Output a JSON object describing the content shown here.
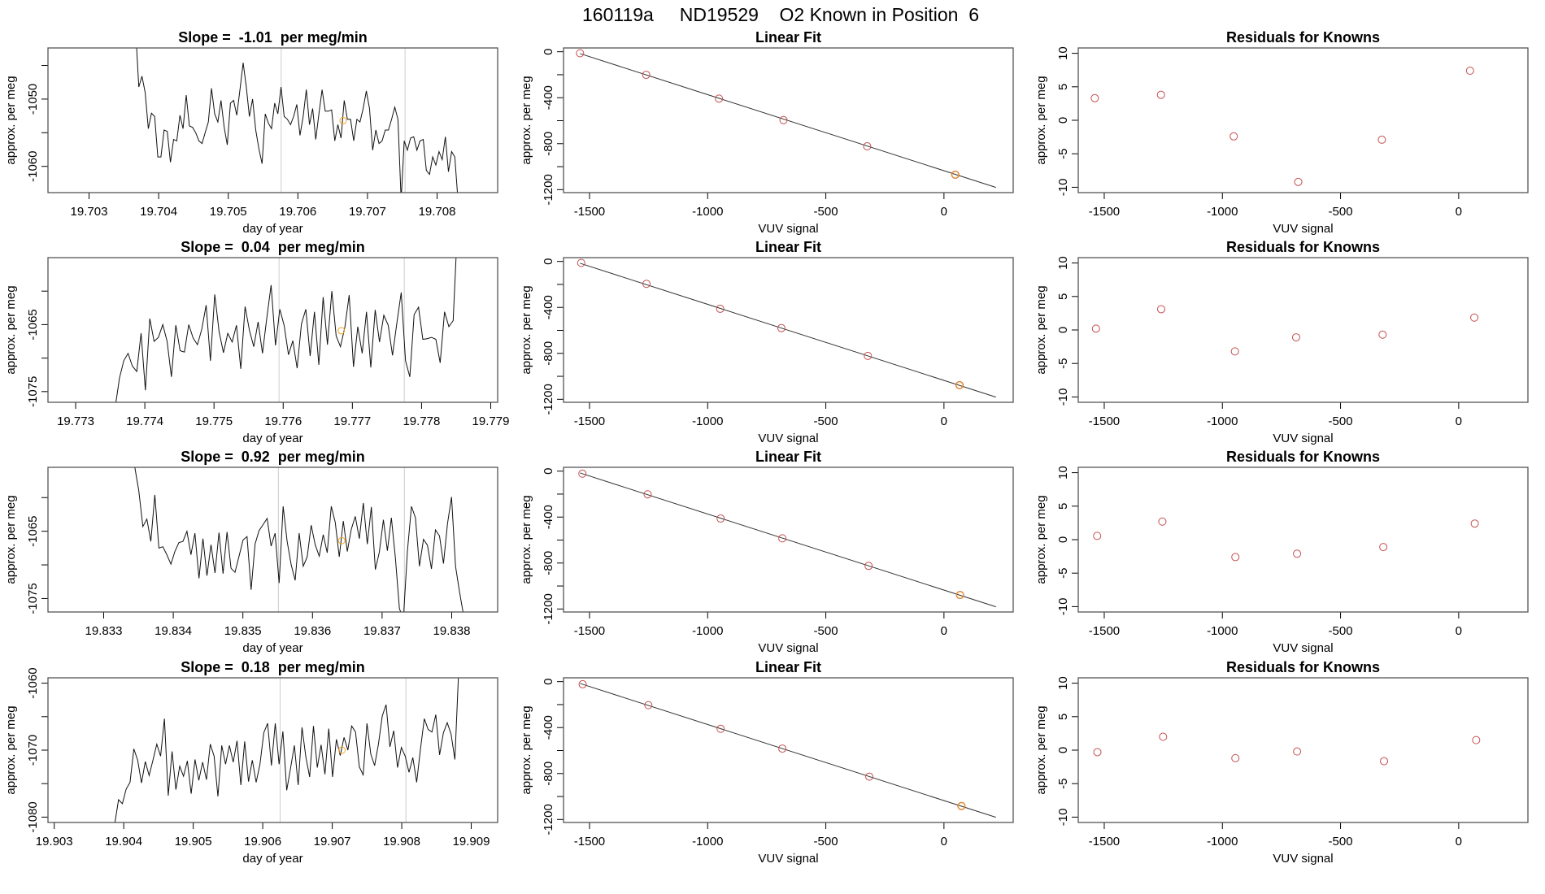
{
  "header": {
    "title": "160119a     ND19529    O2 Known in Position  6"
  },
  "colors": {
    "series": "#111111",
    "known_point": "#c44e4e",
    "current_point": "#f5a623",
    "guide_line": "#cccccc",
    "fit_line": "#333333"
  },
  "chart_data": [
    {
      "type": "line",
      "title": "Slope =  -1.01  per meg/min",
      "xlabel": "day of year",
      "ylabel": "approx. per meg",
      "xlim": [
        19.70241,
        19.70887
      ],
      "ylim": [
        -1063.9,
        -1042.4
      ],
      "xticks": [
        19.703,
        19.704,
        19.705,
        19.706,
        19.707,
        19.708
      ],
      "xtick_labels": [
        "19.703",
        "19.704",
        "19.705",
        "19.706",
        "19.707",
        "19.708"
      ],
      "yticks": [
        -1045,
        -1050,
        -1055,
        -1060
      ],
      "ytick_labels": [
        "",
        "-1050",
        "",
        "-1060"
      ],
      "vlines": [
        19.70576,
        19.70754
      ],
      "marker": [
        19.70665,
        -1053.2
      ],
      "x_range": [
        19.70367,
        19.7083
      ],
      "values": [
        -1040,
        -1048.2,
        -1046.6,
        -1049.0,
        -1054.4,
        -1052.1,
        -1052.6,
        -1058.6,
        -1058.6,
        -1054.6,
        -1054.8,
        -1059.4,
        -1056.0,
        -1056.2,
        -1052.4,
        -1054.4,
        -1049.4,
        -1054.0,
        -1054.2,
        -1055.0,
        -1056.2,
        -1056.6,
        -1055.0,
        -1053.4,
        -1048.4,
        -1052.2,
        -1053.4,
        -1050.2,
        -1054.2,
        -1056.8,
        -1050.6,
        -1050.2,
        -1052.4,
        -1048.6,
        -1044.6,
        -1048.2,
        -1052.6,
        -1050.0,
        -1054.6,
        -1057.4,
        -1059.6,
        -1052.2,
        -1053.6,
        -1054.4,
        -1050.6,
        -1052.2,
        -1048.2,
        -1052.6,
        -1053.0,
        -1053.8,
        -1052.6,
        -1050.8,
        -1055.4,
        -1052.6,
        -1048.6,
        -1053.8,
        -1051.4,
        -1056.0,
        -1052.2,
        -1048.6,
        -1051.8,
        -1051.8,
        -1051.6,
        -1056.2,
        -1053.8,
        -1055.8,
        -1050.2,
        -1053.0,
        -1053.0,
        -1056.2,
        -1053.0,
        -1053.4,
        -1051.4,
        -1048.8,
        -1051.4,
        -1057.6,
        -1054.6,
        -1056.6,
        -1056.2,
        -1054.6,
        -1054.6,
        -1053.0,
        -1051.2,
        -1053.0,
        -1065,
        -1056.2,
        -1057.6,
        -1055.8,
        -1055.6,
        -1057.6,
        -1056.2,
        -1056.0,
        -1060.6,
        -1061.2,
        -1058.6,
        -1059.8,
        -1057.8,
        -1059.0,
        -1055.6,
        -1060.8,
        -1057.8,
        -1058.6,
        -1065
      ]
    },
    {
      "type": "scatter",
      "title": "Linear Fit",
      "xlabel": "VUV signal",
      "ylabel": "approx. per meg",
      "xlim": [
        -1610,
        293
      ],
      "ylim": [
        -1226,
        33
      ],
      "xticks": [
        -1500,
        -1000,
        -500,
        0
      ],
      "xtick_labels": [
        "-1500",
        "-1000",
        "-500",
        "0"
      ],
      "yticks": [
        0,
        -200,
        -400,
        -600,
        -800,
        -1000,
        -1200
      ],
      "ytick_labels": [
        "0",
        "",
        "-400",
        "",
        "-800",
        "",
        "-1200"
      ],
      "fit": {
        "intercept": -1035.5,
        "slope": -0.662,
        "x_from": -1540,
        "x_to": 220
      },
      "x": [
        -1540,
        -1260,
        -952,
        -679,
        -325,
        48
      ],
      "y": [
        -13,
        -201,
        -408,
        -595,
        -823,
        -1070
      ],
      "highlight_index": 5
    },
    {
      "type": "scatter",
      "title": "Residuals for Knowns",
      "xlabel": "VUV signal",
      "ylabel": "approx. per meg",
      "xlim": [
        -1610,
        293
      ],
      "ylim": [
        -10.8,
        10.8
      ],
      "xticks": [
        -1500,
        -1000,
        -500,
        0
      ],
      "xtick_labels": [
        "-1500",
        "-1000",
        "-500",
        "0"
      ],
      "yticks": [
        10,
        5,
        0,
        -5,
        -10
      ],
      "ytick_labels": [
        "10",
        "5",
        "0",
        "-5",
        "-10"
      ],
      "x": [
        -1540,
        -1260,
        -952,
        -679,
        -325,
        48
      ],
      "y": [
        3.3,
        3.8,
        -2.4,
        -9.2,
        -2.9,
        7.4
      ]
    },
    {
      "type": "line",
      "title": "Slope =  0.04  per meg/min",
      "xlabel": "day of year",
      "ylabel": "approx. per meg",
      "xlim": [
        19.7726,
        19.7791
      ],
      "ylim": [
        -1076.6,
        -1055.0
      ],
      "xticks": [
        19.773,
        19.774,
        19.775,
        19.776,
        19.777,
        19.778,
        19.779
      ],
      "xtick_labels": [
        "19.773",
        "19.774",
        "19.775",
        "19.776",
        "19.777",
        "19.778",
        "19.779"
      ],
      "yticks": [
        -1060,
        -1065,
        -1070,
        -1075
      ],
      "ytick_labels": [
        "",
        "-1065",
        "",
        "-1075"
      ],
      "vlines": [
        19.77594,
        19.77775
      ],
      "marker": [
        19.77684,
        -1065.9
      ],
      "x_range": [
        19.77357,
        19.77852
      ],
      "values": [
        -1077.5,
        -1073,
        -1070.4,
        -1069.3,
        -1071.2,
        -1072,
        -1066.3,
        -1074.8,
        -1064.1,
        -1067.5,
        -1066.9,
        -1065,
        -1067.5,
        -1072.8,
        -1065.1,
        -1068.9,
        -1069.1,
        -1065,
        -1067,
        -1068,
        -1065.7,
        -1062.1,
        -1070.4,
        -1060.5,
        -1066.1,
        -1069.2,
        -1066.3,
        -1067.6,
        -1065.1,
        -1071.6,
        -1062.3,
        -1065.9,
        -1068.3,
        -1064.6,
        -1069.3,
        -1064,
        -1059.1,
        -1068.1,
        -1062.7,
        -1065.1,
        -1069.5,
        -1067.4,
        -1071.5,
        -1064.9,
        -1062.7,
        -1069.7,
        -1063.1,
        -1071,
        -1060.9,
        -1068,
        -1060,
        -1066.7,
        -1068.3,
        -1065.4,
        -1060.6,
        -1071.3,
        -1065.3,
        -1069.3,
        -1063.1,
        -1071.4,
        -1062.8,
        -1067.6,
        -1063.6,
        -1065.1,
        -1069.6,
        -1064.8,
        -1060.2,
        -1070.4,
        -1072.8,
        -1063.5,
        -1062.4,
        -1067.2,
        -1067.1,
        -1066.9,
        -1067.2,
        -1070.7,
        -1063.1,
        -1065.3,
        -1064.4,
        -1050
      ]
    },
    {
      "type": "scatter",
      "title": "Linear Fit",
      "xlabel": "VUV signal",
      "ylabel": "approx. per meg",
      "xlim": [
        -1610,
        293
      ],
      "ylim": [
        -1226,
        33
      ],
      "xticks": [
        -1500,
        -1000,
        -500,
        0
      ],
      "xtick_labels": [
        "-1500",
        "-1000",
        "-500",
        "0"
      ],
      "yticks": [
        0,
        -200,
        -400,
        -600,
        -800,
        -1000,
        -1200
      ],
      "ytick_labels": [
        "0",
        "",
        "-400",
        "",
        "-800",
        "",
        "-1200"
      ],
      "fit": {
        "intercept": -1035.5,
        "slope": -0.662,
        "x_from": -1540,
        "x_to": 220
      },
      "x": [
        -1535,
        -1259,
        -947,
        -688,
        -322,
        66
      ],
      "y": [
        -13,
        -195,
        -412,
        -580,
        -822,
        -1077
      ],
      "highlight_index": 5
    },
    {
      "type": "scatter",
      "title": "Residuals for Knowns",
      "xlabel": "VUV signal",
      "ylabel": "approx. per meg",
      "xlim": [
        -1610,
        293
      ],
      "ylim": [
        -10.8,
        10.8
      ],
      "xticks": [
        -1500,
        -1000,
        -500,
        0
      ],
      "xtick_labels": [
        "-1500",
        "-1000",
        "-500",
        "0"
      ],
      "yticks": [
        10,
        5,
        0,
        -5,
        -10
      ],
      "ytick_labels": [
        "10",
        "5",
        "0",
        "-5",
        "-10"
      ],
      "x": [
        -1535,
        -1259,
        -947,
        -688,
        -322,
        66
      ],
      "y": [
        0.2,
        3.1,
        -3.2,
        -1.1,
        -0.7,
        1.85
      ]
    },
    {
      "type": "line",
      "title": "Slope =  0.92  per meg/min",
      "xlabel": "day of year",
      "ylabel": "approx. per meg",
      "xlim": [
        19.8322,
        19.83866
      ],
      "ylim": [
        -1077,
        -1055.5
      ],
      "xticks": [
        19.833,
        19.834,
        19.835,
        19.836,
        19.837,
        19.838
      ],
      "xtick_labels": [
        "19.833",
        "19.834",
        "19.835",
        "19.836",
        "19.837",
        "19.838"
      ],
      "yticks": [
        -1060,
        -1065,
        -1070,
        -1075
      ],
      "ytick_labels": [
        "",
        "-1065",
        "",
        "-1075"
      ],
      "vlines": [
        19.83551,
        19.83732
      ],
      "marker": [
        19.83642,
        -1066.4
      ],
      "x_range": [
        19.83339,
        19.83817
      ],
      "values": [
        -1052,
        -1055.5,
        -1059,
        -1064.3,
        -1063.2,
        -1066.5,
        -1059.6,
        -1067.5,
        -1067.3,
        -1068.5,
        -1069.9,
        -1068,
        -1066.7,
        -1066.5,
        -1065,
        -1068.5,
        -1065.3,
        -1072,
        -1066.1,
        -1071.6,
        -1067,
        -1071.2,
        -1065.2,
        -1071.3,
        -1065.1,
        -1070.5,
        -1071.1,
        -1068.7,
        -1066.3,
        -1065.8,
        -1073.7,
        -1066.9,
        -1064.9,
        -1064,
        -1063.1,
        -1067.2,
        -1065.3,
        -1072.7,
        -1061.3,
        -1066.5,
        -1070,
        -1072.3,
        -1065.3,
        -1070.2,
        -1068.8,
        -1064.1,
        -1067,
        -1068.7,
        -1065.5,
        -1068.2,
        -1061.3,
        -1063.7,
        -1068.8,
        -1063.5,
        -1068,
        -1064.7,
        -1062.8,
        -1066.1,
        -1060.8,
        -1066.9,
        -1061.4,
        -1070.7,
        -1068.1,
        -1063.3,
        -1067.9,
        -1063,
        -1068.9,
        -1076.5,
        -1078,
        -1068,
        -1061.3,
        -1063,
        -1070.2,
        -1066.2,
        -1067.1,
        -1070.6,
        -1064.8,
        -1065.7,
        -1069.8,
        -1063.9,
        -1059.9,
        -1070.2,
        -1074,
        -1077.5
      ]
    },
    {
      "type": "scatter",
      "title": "Linear Fit",
      "xlabel": "VUV signal",
      "ylabel": "approx. per meg",
      "xlim": [
        -1610,
        293
      ],
      "ylim": [
        -1226,
        33
      ],
      "xticks": [
        -1500,
        -1000,
        -500,
        0
      ],
      "xtick_labels": [
        "-1500",
        "-1000",
        "-500",
        "0"
      ],
      "yticks": [
        0,
        -200,
        -400,
        -600,
        -800,
        -1000,
        -1200
      ],
      "ytick_labels": [
        "0",
        "",
        "-400",
        "",
        "-800",
        "",
        "-1200"
      ],
      "fit": {
        "intercept": -1035.5,
        "slope": -0.662,
        "x_from": -1540,
        "x_to": 220
      },
      "x": [
        -1530,
        -1254,
        -945,
        -684,
        -319,
        68
      ],
      "y": [
        -22,
        -202,
        -413,
        -585,
        -825,
        -1078
      ],
      "highlight_index": 5
    },
    {
      "type": "scatter",
      "title": "Residuals for Knowns",
      "xlabel": "VUV signal",
      "ylabel": "approx. per meg",
      "xlim": [
        -1610,
        293
      ],
      "ylim": [
        -10.8,
        10.8
      ],
      "xticks": [
        -1500,
        -1000,
        -500,
        0
      ],
      "xtick_labels": [
        "-1500",
        "-1000",
        "-500",
        "0"
      ],
      "yticks": [
        10,
        5,
        0,
        -5,
        -10
      ],
      "ytick_labels": [
        "10",
        "5",
        "0",
        "-5",
        "-10"
      ],
      "x": [
        -1530,
        -1254,
        -945,
        -684,
        -319,
        68
      ],
      "y": [
        0.56,
        2.7,
        -2.6,
        -2.1,
        -1.1,
        2.4
      ]
    },
    {
      "type": "line",
      "title": "Slope =  0.18  per meg/min",
      "xlabel": "day of year",
      "ylabel": "approx. per meg",
      "xlim": [
        19.90291,
        19.90938
      ],
      "ylim": [
        -1080.8,
        -1059.2
      ],
      "xticks": [
        19.903,
        19.904,
        19.905,
        19.906,
        19.907,
        19.908,
        19.909
      ],
      "xtick_labels": [
        "19.903",
        "19.904",
        "19.905",
        "19.906",
        "19.907",
        "19.908",
        "19.909"
      ],
      "yticks": [
        -1060,
        -1065,
        -1070,
        -1075,
        -1080
      ],
      "ytick_labels": [
        "-1060",
        "",
        "-1070",
        "",
        "-1080"
      ],
      "vlines": [
        19.90625,
        19.90806
      ],
      "marker": [
        19.90714,
        -1070
      ],
      "x_range": [
        19.90387,
        19.90882
      ],
      "values": [
        -1081,
        -1077.4,
        -1078,
        -1075.8,
        -1074.8,
        -1069.8,
        -1071.5,
        -1074.9,
        -1071.7,
        -1073.8,
        -1071.5,
        -1069.1,
        -1070.9,
        -1065.3,
        -1076.8,
        -1070.2,
        -1075.9,
        -1072.4,
        -1073.9,
        -1071.6,
        -1076.5,
        -1071.4,
        -1074.5,
        -1071.8,
        -1074.4,
        -1069.1,
        -1070.9,
        -1076.9,
        -1069.3,
        -1072.1,
        -1069.3,
        -1071.8,
        -1068.6,
        -1075.2,
        -1068.7,
        -1074.7,
        -1071.5,
        -1074.8,
        -1072.1,
        -1067.4,
        -1066,
        -1072.3,
        -1066,
        -1072.1,
        -1067.2,
        -1076,
        -1072.7,
        -1069.3,
        -1075.2,
        -1066.6,
        -1071,
        -1074,
        -1066.4,
        -1072.6,
        -1069.2,
        -1073.6,
        -1066.8,
        -1074,
        -1068.4,
        -1070.8,
        -1068.1,
        -1070,
        -1066.4,
        -1067.3,
        -1072.5,
        -1073.7,
        -1066,
        -1070.6,
        -1072.3,
        -1069.1,
        -1064.9,
        -1063.2,
        -1069.5,
        -1067.1,
        -1072.6,
        -1069.6,
        -1070.9,
        -1073.3,
        -1071.1,
        -1074.8,
        -1069.8,
        -1065.3,
        -1066.9,
        -1067.3,
        -1064.7,
        -1070.7,
        -1067.4,
        -1065.9,
        -1067.6,
        -1071.4,
        -1058
      ]
    },
    {
      "type": "scatter",
      "title": "Linear Fit",
      "xlabel": "VUV signal",
      "ylabel": "approx. per meg",
      "xlim": [
        -1610,
        293
      ],
      "ylim": [
        -1226,
        33
      ],
      "xticks": [
        -1500,
        -1000,
        -500,
        0
      ],
      "xtick_labels": [
        "-1500",
        "-1000",
        "-500",
        "0"
      ],
      "yticks": [
        0,
        -200,
        -400,
        -600,
        -800,
        -1000,
        -1200
      ],
      "ytick_labels": [
        "0",
        "",
        "-400",
        "",
        "-800",
        "",
        "-1200"
      ],
      "fit": {
        "intercept": -1035.5,
        "slope": -0.662,
        "x_from": -1540,
        "x_to": 220
      },
      "x": [
        -1529,
        -1251,
        -945,
        -684,
        -316,
        74
      ],
      "y": [
        -23,
        -205,
        -411,
        -583,
        -827,
        -1083
      ],
      "highlight_index": 5
    },
    {
      "type": "scatter",
      "title": "Residuals for Knowns",
      "xlabel": "VUV signal",
      "ylabel": "approx. per meg",
      "xlim": [
        -1610,
        293
      ],
      "ylim": [
        -10.8,
        10.8
      ],
      "xticks": [
        -1500,
        -1000,
        -500,
        0
      ],
      "xtick_labels": [
        "-1500",
        "-1000",
        "-500",
        "0"
      ],
      "yticks": [
        10,
        5,
        0,
        -5,
        -10
      ],
      "ytick_labels": [
        "10",
        "5",
        "0",
        "-5",
        "-10"
      ],
      "x": [
        -1529,
        -1251,
        -945,
        -684,
        -316,
        74
      ],
      "y": [
        -0.3,
        2.0,
        -1.2,
        -0.2,
        -1.65,
        1.5
      ]
    }
  ]
}
